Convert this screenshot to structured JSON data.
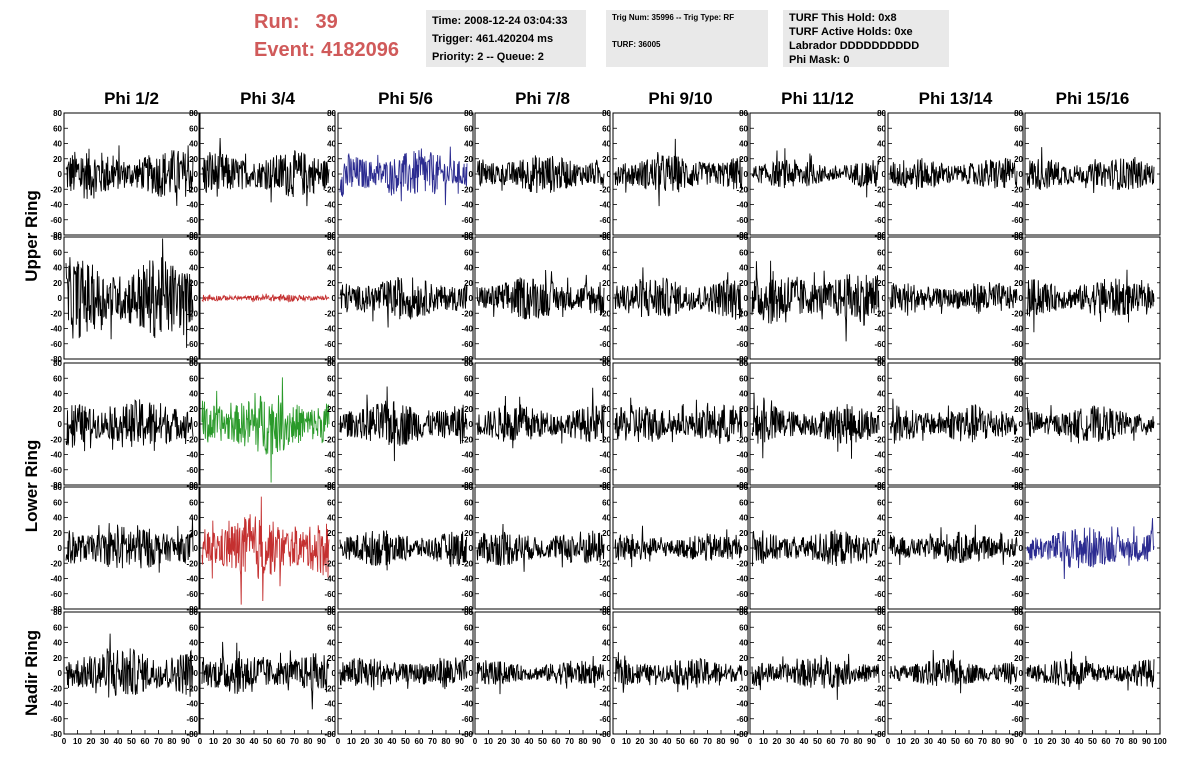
{
  "header": {
    "run_label": "Run:",
    "run_value": "39",
    "event_label": "Event:",
    "event_value": "4182096",
    "time_box": [
      "Time: 2008-12-24 03:04:33",
      "Trigger: 461.420204 ms",
      "Priority: 2 -- Queue: 2"
    ],
    "trig_box": [
      "Trig Num: 35996 -- Trig Type: RF",
      "TURF: 36005"
    ],
    "turf_box": [
      "TURF This Hold: 0x8",
      "TURF Active Holds: 0xe",
      "Labrador DDDDDDDDDD",
      "Phi Mask: 0"
    ]
  },
  "colors": {
    "default": "#000000",
    "blue": "#2b2b90",
    "red": "#c43030",
    "green": "#2a9a2a",
    "header_red": "#d05a5a",
    "box_bg": "#e9e9e9"
  },
  "chart_data": {
    "type": "line",
    "columns": [
      "Phi 1/2",
      "Phi 3/4",
      "Phi 5/6",
      "Phi 7/8",
      "Phi 9/10",
      "Phi 11/12",
      "Phi 13/14",
      "Phi 15/16"
    ],
    "rows": [
      "Upper Ring",
      "Upper Ring",
      "Lower Ring",
      "Lower Ring",
      "Nadir Ring"
    ],
    "row_labels": [
      {
        "text": "Upper Ring",
        "rows": [
          0,
          1
        ]
      },
      {
        "text": "Lower Ring",
        "rows": [
          2,
          3
        ]
      },
      {
        "text": "Nadir Ring",
        "rows": [
          4,
          4
        ]
      }
    ],
    "ylim": [
      -80,
      80
    ],
    "yticks": [
      -80,
      -60,
      -40,
      -20,
      0,
      20,
      40,
      60,
      80
    ],
    "xlim": [
      0,
      100
    ],
    "xticks": [
      0,
      10,
      20,
      30,
      40,
      50,
      60,
      70,
      80,
      90,
      100
    ],
    "samples_per_trace": 260,
    "traces": [
      [
        {
          "amp": 28,
          "color": "default"
        },
        {
          "amp": 26,
          "color": "default"
        },
        {
          "amp": 26,
          "color": "blue"
        },
        {
          "amp": 22,
          "color": "default"
        },
        {
          "amp": 22,
          "color": "default"
        },
        {
          "amp": 16,
          "color": "default"
        },
        {
          "amp": 18,
          "color": "default"
        },
        {
          "amp": 18,
          "color": "default"
        }
      ],
      [
        {
          "amp": 45,
          "color": "default"
        },
        {
          "amp": 4,
          "color": "red"
        },
        {
          "amp": 24,
          "color": "default"
        },
        {
          "amp": 24,
          "color": "default"
        },
        {
          "amp": 24,
          "color": "default"
        },
        {
          "amp": 30,
          "color": "default"
        },
        {
          "amp": 18,
          "color": "default"
        },
        {
          "amp": 22,
          "color": "default"
        }
      ],
      [
        {
          "amp": 28,
          "color": "default"
        },
        {
          "amp": 34,
          "color": "green"
        },
        {
          "amp": 26,
          "color": "default"
        },
        {
          "amp": 22,
          "color": "default"
        },
        {
          "amp": 22,
          "color": "default"
        },
        {
          "amp": 22,
          "color": "default"
        },
        {
          "amp": 22,
          "color": "default"
        },
        {
          "amp": 20,
          "color": "default"
        }
      ],
      [
        {
          "amp": 26,
          "color": "default"
        },
        {
          "amp": 36,
          "color": "red"
        },
        {
          "amp": 20,
          "color": "default"
        },
        {
          "amp": 20,
          "color": "default"
        },
        {
          "amp": 16,
          "color": "default"
        },
        {
          "amp": 20,
          "color": "default"
        },
        {
          "amp": 18,
          "color": "default"
        },
        {
          "amp": 24,
          "color": "blue"
        }
      ],
      [
        {
          "amp": 30,
          "color": "default"
        },
        {
          "amp": 24,
          "color": "default"
        },
        {
          "amp": 18,
          "color": "default"
        },
        {
          "amp": 14,
          "color": "default"
        },
        {
          "amp": 16,
          "color": "default"
        },
        {
          "amp": 18,
          "color": "default"
        },
        {
          "amp": 16,
          "color": "default"
        },
        {
          "amp": 16,
          "color": "default"
        }
      ]
    ],
    "grid": false
  }
}
